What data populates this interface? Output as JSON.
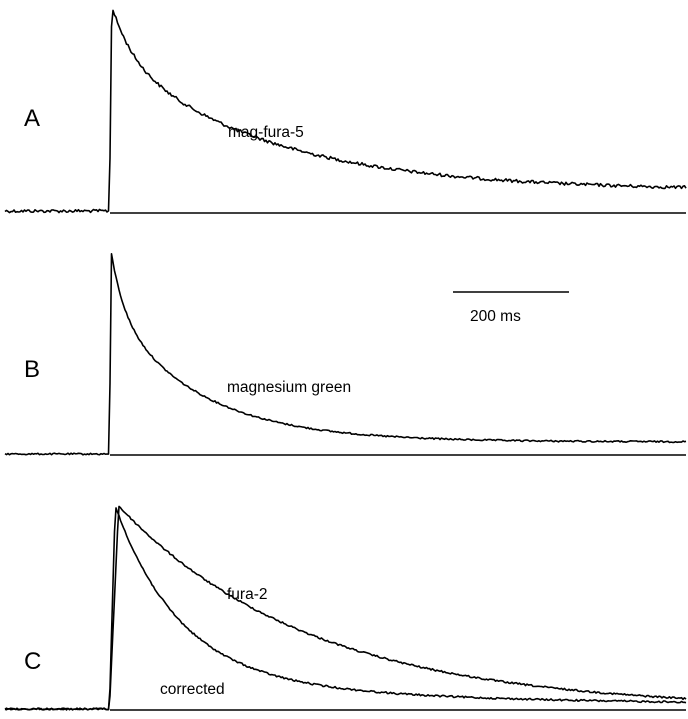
{
  "chart_data": [
    {
      "type": "line",
      "panel": "A",
      "x_unit": "ms",
      "stimulus_time": 180,
      "x_range": [
        0,
        1170
      ],
      "series": [
        {
          "name": "mag-fura-5",
          "peak": 1.0,
          "baseline_tail": 0.1,
          "tau_fast": 35,
          "tau_slow": 260,
          "fast_fraction": 0.25,
          "rise_ms": 4
        }
      ]
    },
    {
      "type": "line",
      "panel": "B",
      "x_unit": "ms",
      "stimulus_time": 180,
      "x_range": [
        0,
        1170
      ],
      "series": [
        {
          "name": "magnesium green",
          "peak": 1.0,
          "baseline_tail": 0.06,
          "tau_fast": 22,
          "tau_slow": 150,
          "fast_fraction": 0.3,
          "rise_ms": 3
        }
      ]
    },
    {
      "type": "line",
      "panel": "C",
      "x_unit": "ms",
      "stimulus_time": 180,
      "x_range": [
        0,
        1170
      ],
      "series": [
        {
          "name": "fura-2",
          "peak": 1.0,
          "baseline_tail": 0.0,
          "tau_fast": 330,
          "tau_slow": 330,
          "fast_fraction": 0.0,
          "rise_ms": 16
        },
        {
          "name": "corrected",
          "peak": 1.0,
          "baseline_tail": 0.02,
          "tau_fast": 110,
          "tau_slow": 420,
          "fast_fraction": 0.85,
          "rise_ms": 10
        }
      ]
    }
  ],
  "panels": {
    "A": {
      "letter": "A",
      "label": "mag-fura-5"
    },
    "B": {
      "letter": "B",
      "label": "magnesium green"
    },
    "C": {
      "letter": "C",
      "label_1": "fura-2",
      "label_2": "corrected"
    }
  },
  "scale_bar": {
    "value": 200,
    "unit": "ms",
    "label": "200 ms"
  }
}
